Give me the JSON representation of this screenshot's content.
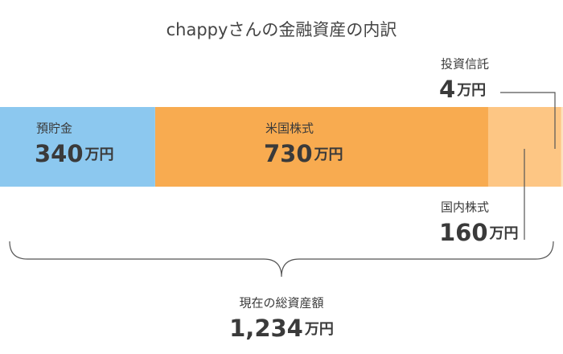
{
  "chart_data": {
    "type": "stacked-bar",
    "title": "chappyさんの金融資産の内訳",
    "unit": "万円",
    "categories": [
      "預貯金",
      "米国株式",
      "国内株式",
      "投資信託"
    ],
    "values": [
      340,
      730,
      160,
      4
    ],
    "colors": [
      "#8cc8ef",
      "#f8ab50",
      "#fdc684",
      "#fde3bd"
    ],
    "total_label": "現在の総資産額",
    "total": {
      "value": 1234,
      "label": "1,234"
    }
  }
}
